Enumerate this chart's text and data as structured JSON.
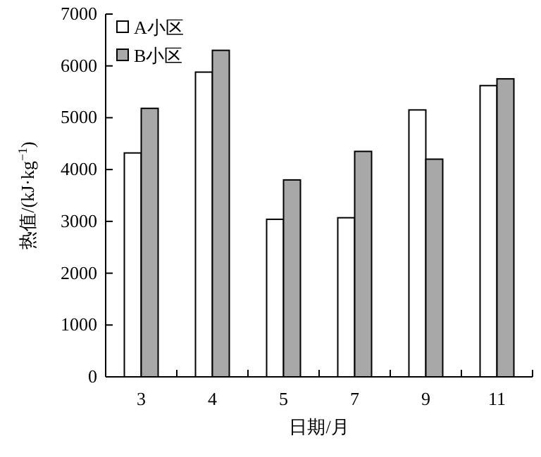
{
  "chart_data": {
    "type": "bar",
    "xlabel": "日期/月",
    "ylabel": "热值/(kJ·kg$^{−1}$)",
    "categories": [
      "3",
      "4",
      "5",
      "7",
      "9",
      "11"
    ],
    "series": [
      {
        "name": "A小区",
        "color": "#ffffff",
        "values": [
          4320,
          5880,
          3040,
          3070,
          5150,
          5620
        ]
      },
      {
        "name": "B小区",
        "color": "#a8a8a8",
        "values": [
          5180,
          6300,
          3800,
          4350,
          4200,
          5750
        ]
      }
    ],
    "ylim": [
      0,
      7000
    ],
    "yticks": [
      0,
      1000,
      2000,
      3000,
      4000,
      5000,
      6000,
      7000
    ],
    "grid": false,
    "legend": "top left"
  }
}
